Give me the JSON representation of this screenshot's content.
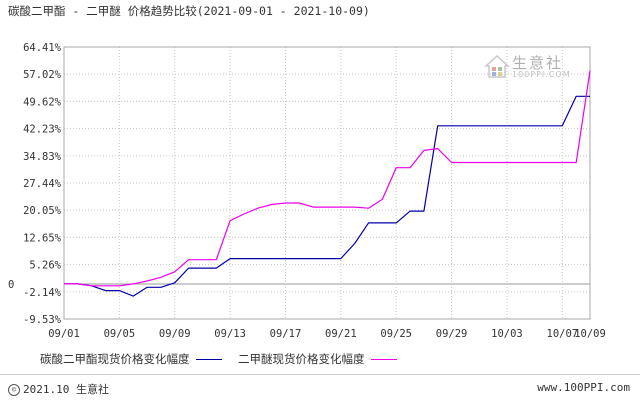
{
  "header": {
    "title_series_a": "碳酸二甲酯",
    "title_sep": " - ",
    "title_series_b": "二甲醚",
    "title_suffix": " 价格趋势比较",
    "title_range": "(2021-09-01 - 2021-10-09)"
  },
  "watermark": {
    "text": "生意社",
    "sub": "100PPI.COM"
  },
  "legend": {
    "series_a_label": "碳酸二甲酯现货价格变化幅度",
    "series_b_label": "二甲醚现货价格变化幅度"
  },
  "footer": {
    "copyright_symbol": "©",
    "left_text": "2021.10 生意社",
    "right_text": "www.100PPI.com"
  },
  "colors": {
    "series_a": "#0000aa",
    "series_b": "#ee00ee",
    "grid": "#c8c8c8",
    "axis": "#666666"
  },
  "chart_data": {
    "type": "line",
    "title": "碳酸二甲酯 - 二甲醚 价格趋势比较(2021-09-01 - 2021-10-09)",
    "ylim": [
      -9.53,
      64.41
    ],
    "yticks": [
      "64.41%",
      "57.02%",
      "49.62%",
      "42.23%",
      "34.83%",
      "27.44%",
      "20.05%",
      "12.65%",
      "5.26%",
      "-2.14%",
      "-9.53%"
    ],
    "ytick_values": [
      64.41,
      57.02,
      49.62,
      42.23,
      34.83,
      27.44,
      20.05,
      12.65,
      5.26,
      -2.14,
      -9.53
    ],
    "zero_label": "0",
    "xlim": [
      "2021-09-01",
      "2021-10-09"
    ],
    "xticks": [
      {
        "label": "09/01",
        "date": "2021-09-01"
      },
      {
        "label": "09/05",
        "date": "2021-09-05"
      },
      {
        "label": "09/09",
        "date": "2021-09-09"
      },
      {
        "label": "09/13",
        "date": "2021-09-13"
      },
      {
        "label": "09/17",
        "date": "2021-09-17"
      },
      {
        "label": "09/21",
        "date": "2021-09-21"
      },
      {
        "label": "09/25",
        "date": "2021-09-25"
      },
      {
        "label": "09/29",
        "date": "2021-09-29"
      },
      {
        "label": "10/03",
        "date": "2021-10-03"
      },
      {
        "label": "10/07",
        "date": "2021-10-07"
      },
      {
        "label": "10/09",
        "date": "2021-10-09"
      }
    ],
    "grid": true,
    "legend": "bottom",
    "series": [
      {
        "name": "碳酸二甲酯现货价格变化幅度",
        "color": "#0000aa",
        "points": [
          [
            "2021-09-01",
            0
          ],
          [
            "2021-09-02",
            0
          ],
          [
            "2021-09-03",
            -0.5
          ],
          [
            "2021-09-04",
            -1.8
          ],
          [
            "2021-09-05",
            -1.8
          ],
          [
            "2021-09-06",
            -3.3
          ],
          [
            "2021-09-07",
            -0.9
          ],
          [
            "2021-09-08",
            -0.9
          ],
          [
            "2021-09-09",
            0.3
          ],
          [
            "2021-09-10",
            4.3
          ],
          [
            "2021-09-11",
            4.3
          ],
          [
            "2021-09-12",
            4.3
          ],
          [
            "2021-09-13",
            6.9
          ],
          [
            "2021-09-14",
            6.9
          ],
          [
            "2021-09-15",
            6.9
          ],
          [
            "2021-09-16",
            6.9
          ],
          [
            "2021-09-17",
            6.9
          ],
          [
            "2021-09-18",
            6.9
          ],
          [
            "2021-09-19",
            6.9
          ],
          [
            "2021-09-20",
            6.9
          ],
          [
            "2021-09-21",
            6.9
          ],
          [
            "2021-09-22",
            11.0
          ],
          [
            "2021-09-23",
            16.6
          ],
          [
            "2021-09-24",
            16.6
          ],
          [
            "2021-09-25",
            16.6
          ],
          [
            "2021-09-26",
            19.8
          ],
          [
            "2021-09-27",
            19.8
          ],
          [
            "2021-09-28",
            43.0
          ],
          [
            "2021-09-29",
            43.0
          ],
          [
            "2021-09-30",
            43.0
          ],
          [
            "2021-10-01",
            43.0
          ],
          [
            "2021-10-02",
            43.0
          ],
          [
            "2021-10-03",
            43.0
          ],
          [
            "2021-10-04",
            43.0
          ],
          [
            "2021-10-05",
            43.0
          ],
          [
            "2021-10-06",
            43.0
          ],
          [
            "2021-10-07",
            43.0
          ],
          [
            "2021-10-08",
            51.0
          ],
          [
            "2021-10-09",
            51.0
          ]
        ]
      },
      {
        "name": "二甲醚现货价格变化幅度",
        "color": "#ee00ee",
        "points": [
          [
            "2021-09-01",
            0
          ],
          [
            "2021-09-02",
            0
          ],
          [
            "2021-09-03",
            -0.5
          ],
          [
            "2021-09-04",
            -0.5
          ],
          [
            "2021-09-05",
            -0.5
          ],
          [
            "2021-09-06",
            0
          ],
          [
            "2021-09-07",
            0.8
          ],
          [
            "2021-09-08",
            1.8
          ],
          [
            "2021-09-09",
            3.3
          ],
          [
            "2021-09-10",
            6.6
          ],
          [
            "2021-09-11",
            6.6
          ],
          [
            "2021-09-12",
            6.6
          ],
          [
            "2021-09-13",
            17.2
          ],
          [
            "2021-09-14",
            19.0
          ],
          [
            "2021-09-15",
            20.6
          ],
          [
            "2021-09-16",
            21.6
          ],
          [
            "2021-09-17",
            22.0
          ],
          [
            "2021-09-18",
            22.0
          ],
          [
            "2021-09-19",
            20.9
          ],
          [
            "2021-09-20",
            20.9
          ],
          [
            "2021-09-21",
            20.9
          ],
          [
            "2021-09-22",
            20.9
          ],
          [
            "2021-09-23",
            20.6
          ],
          [
            "2021-09-24",
            23.0
          ],
          [
            "2021-09-25",
            31.6
          ],
          [
            "2021-09-26",
            31.6
          ],
          [
            "2021-09-27",
            36.3
          ],
          [
            "2021-09-28",
            36.8
          ],
          [
            "2021-09-29",
            33.0
          ],
          [
            "2021-09-30",
            33.0
          ],
          [
            "2021-10-01",
            33.0
          ],
          [
            "2021-10-02",
            33.0
          ],
          [
            "2021-10-03",
            33.0
          ],
          [
            "2021-10-04",
            33.0
          ],
          [
            "2021-10-05",
            33.0
          ],
          [
            "2021-10-06",
            33.0
          ],
          [
            "2021-10-07",
            33.0
          ],
          [
            "2021-10-08",
            33.0
          ],
          [
            "2021-10-09",
            58.0
          ]
        ]
      }
    ]
  }
}
